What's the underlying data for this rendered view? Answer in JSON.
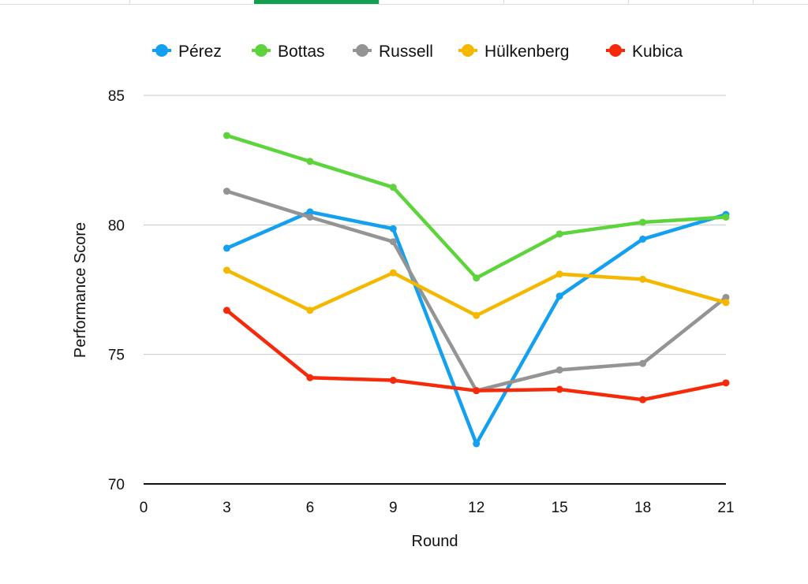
{
  "chart_data": {
    "type": "line",
    "xlabel": "Round",
    "ylabel": "Performance Score",
    "xlim": [
      0,
      21
    ],
    "ylim": [
      70,
      85
    ],
    "x_ticks": [
      0,
      3,
      6,
      9,
      12,
      15,
      18,
      21
    ],
    "y_ticks": [
      70,
      75,
      80,
      85
    ],
    "grid": true,
    "legend_position": "top",
    "x": [
      3,
      6,
      9,
      12,
      15,
      18,
      21
    ],
    "series": [
      {
        "name": "Pérez",
        "color": "#14a0f0",
        "values": [
          79.1,
          80.5,
          79.85,
          71.55,
          77.25,
          79.45,
          80.4
        ]
      },
      {
        "name": "Bottas",
        "color": "#5ed43c",
        "values": [
          83.45,
          82.45,
          81.45,
          77.95,
          79.65,
          80.1,
          80.3
        ]
      },
      {
        "name": "Russell",
        "color": "#949494",
        "values": [
          81.3,
          80.3,
          79.35,
          73.6,
          74.4,
          74.65,
          77.2
        ]
      },
      {
        "name": "Hülkenberg",
        "color": "#f5b800",
        "values": [
          78.25,
          76.7,
          78.15,
          76.5,
          78.1,
          77.9,
          77.0
        ]
      },
      {
        "name": "Kubica",
        "color": "#f52a0a",
        "values": [
          76.7,
          74.1,
          74.0,
          73.6,
          73.65,
          73.25,
          73.9
        ]
      }
    ]
  }
}
